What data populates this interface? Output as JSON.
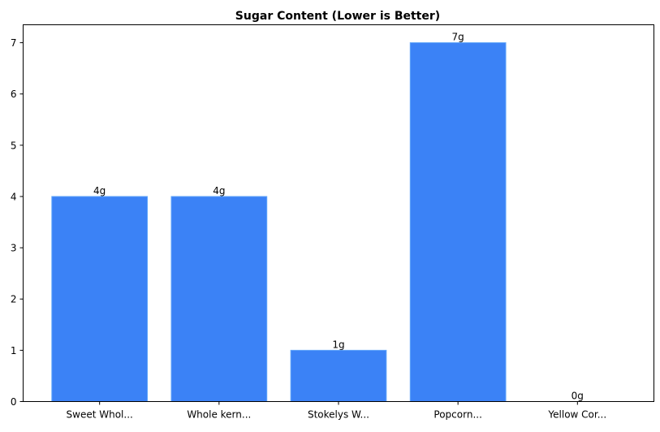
{
  "chart_data": {
    "type": "bar",
    "title": "Sugar Content (Lower is Better)",
    "xlabel": "",
    "ylabel": "",
    "categories": [
      "Sweet Whol...",
      "Whole kern...",
      "Stokelys W...",
      "Popcorn...",
      "Yellow Cor..."
    ],
    "values": [
      4,
      4,
      1,
      7,
      0
    ],
    "data_labels": [
      "4g",
      "4g",
      "1g",
      "7g",
      "0g"
    ],
    "yticks": [
      0,
      1,
      2,
      3,
      4,
      5,
      6,
      7
    ],
    "ylim": [
      0,
      7.35
    ],
    "grid": false,
    "bar_color": "#3b82f6",
    "bar_edge_color": "#60a5fa"
  }
}
